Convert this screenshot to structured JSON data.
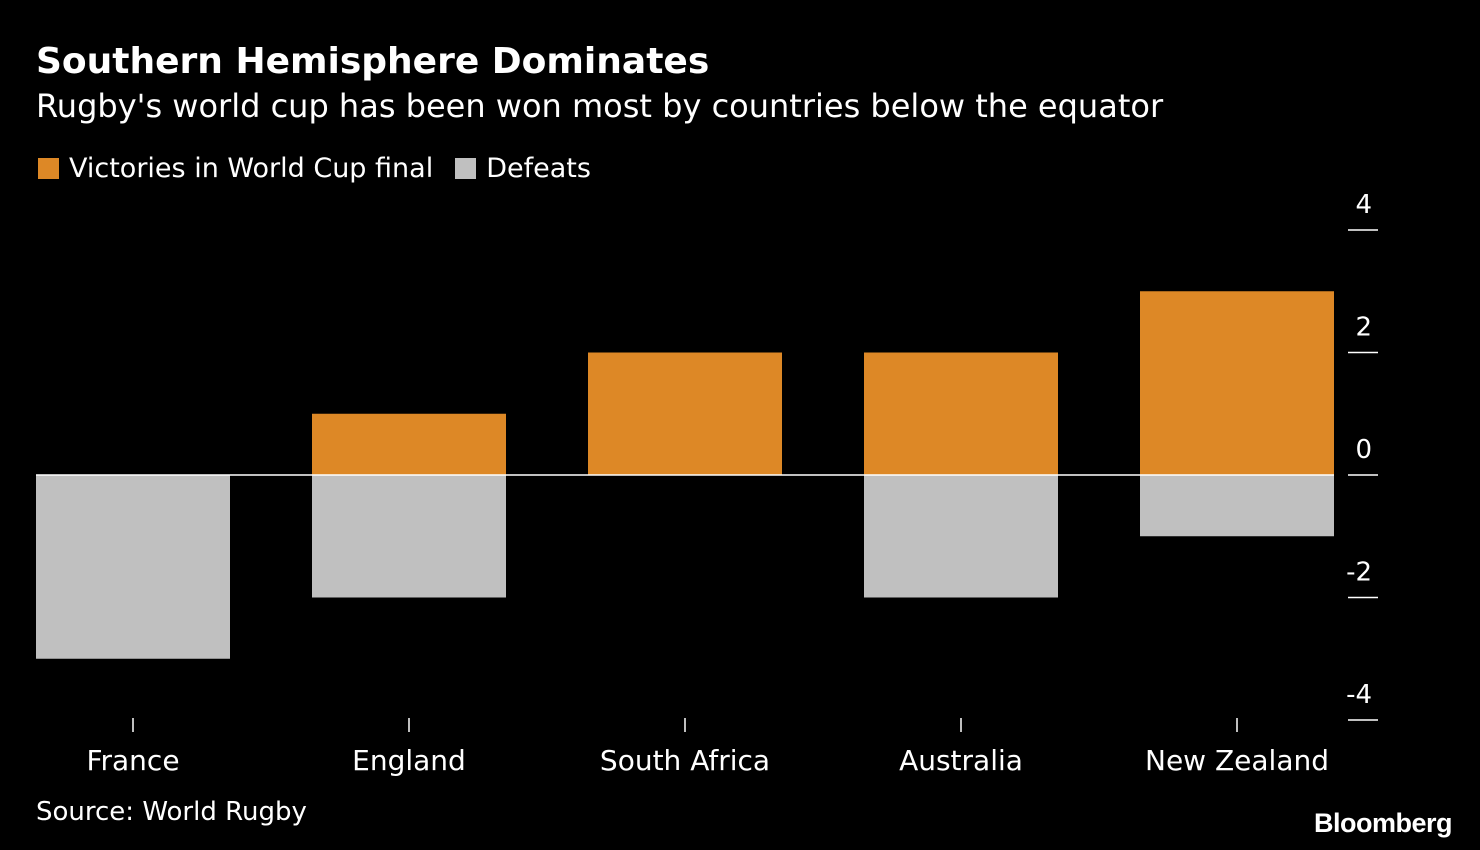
{
  "header": {
    "title": "Southern Hemisphere Dominates",
    "subtitle": "Rugby's world cup has been won most by countries below the equator"
  },
  "legend": {
    "items": [
      {
        "label": "Victories in World Cup final",
        "color": "#dd8826"
      },
      {
        "label": "Defeats",
        "color": "#c0c0c0"
      }
    ]
  },
  "footer": {
    "source": "Source: World Rugby",
    "brand": "Bloomberg"
  },
  "chart_data": {
    "type": "bar",
    "stacked": "diverging",
    "categories": [
      "France",
      "England",
      "South Africa",
      "Australia",
      "New Zealand"
    ],
    "series": [
      {
        "name": "Victories in World Cup final",
        "values": [
          0,
          1,
          2,
          2,
          3
        ],
        "color": "#dd8826"
      },
      {
        "name": "Defeats",
        "values": [
          -3,
          -2,
          0,
          -2,
          -1
        ],
        "color": "#c0c0c0"
      }
    ],
    "title": "Southern Hemisphere Dominates",
    "subtitle": "Rugby's world cup has been won most by countries below the equator",
    "xlabel": "",
    "ylabel": "",
    "ylim": [
      -4,
      4
    ],
    "yticks": [
      4,
      2,
      0,
      -2,
      -4
    ],
    "ytick_labels": [
      "4",
      "2",
      "0",
      "-2",
      "-4"
    ],
    "yaxis_side": "right",
    "grid": false,
    "legend_position": "top-left"
  }
}
